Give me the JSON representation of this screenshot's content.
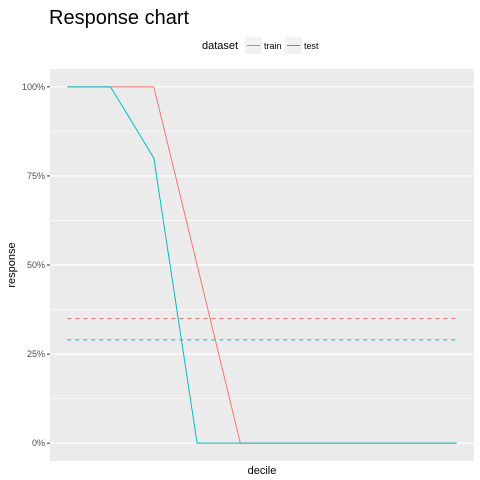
{
  "chart_data": {
    "type": "line",
    "title": "Response chart",
    "xlabel": "decile",
    "ylabel": "response",
    "x": [
      1,
      2,
      3,
      4,
      5,
      6,
      7,
      8,
      9,
      10
    ],
    "xlim": [
      0.6,
      10.4
    ],
    "ylim": [
      -0.05,
      1.05
    ],
    "yticks": [
      {
        "value": 0,
        "label": "0%"
      },
      {
        "value": 0.25,
        "label": "25%"
      },
      {
        "value": 0.5,
        "label": "50%"
      },
      {
        "value": 0.75,
        "label": "75%"
      },
      {
        "value": 1,
        "label": "100%"
      }
    ],
    "yminor": [
      0.125,
      0.375,
      0.625,
      0.875
    ],
    "legend": {
      "title": "dataset",
      "placement": "top"
    },
    "series": [
      {
        "name": "train",
        "color": "#F8766D",
        "values": [
          1,
          1,
          1,
          0.5,
          0,
          0,
          0,
          0,
          0,
          0
        ],
        "reference": 0.35
      },
      {
        "name": "test",
        "color": "#00BFC4",
        "values": [
          1,
          1,
          0.8,
          0,
          0,
          0,
          0,
          0,
          0,
          0
        ],
        "reference": 0.29
      }
    ],
    "grid": true,
    "panel_color": "#EBEBEB",
    "grid_color": "#FFFFFF"
  }
}
